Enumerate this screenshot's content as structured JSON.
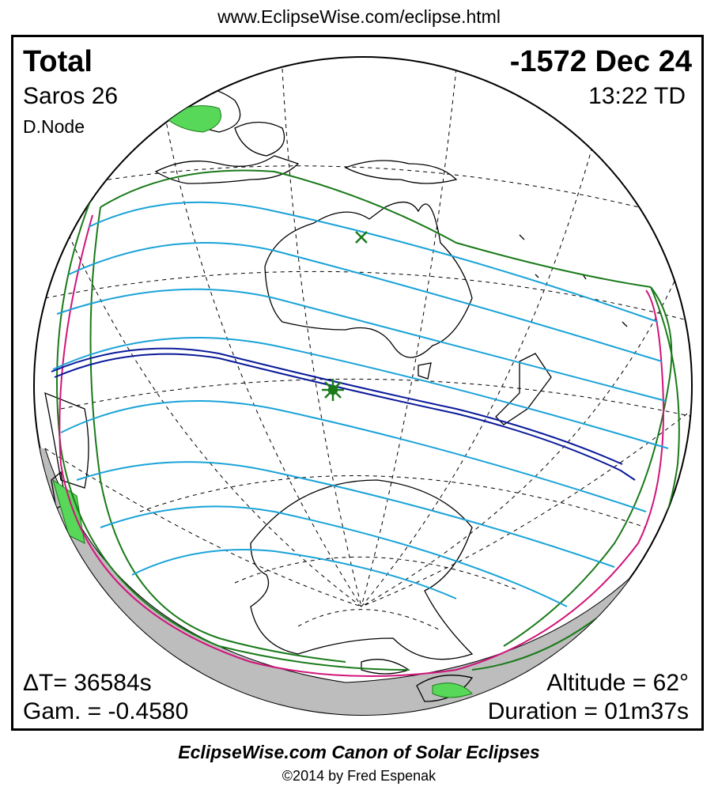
{
  "header": {
    "url": "www.EclipseWise.com/eclipse.html"
  },
  "eclipse": {
    "type": "Total",
    "date": "-1572 Dec 24",
    "saros": "Saros  26",
    "time": "13:22 TD",
    "node": "D.Node",
    "delta_t": "ΔT=  36584s",
    "gamma": "Gam. = -0.4580",
    "altitude": "Altitude = 62°",
    "duration": "Duration = 01m37s"
  },
  "footer": {
    "title": "EclipseWise.com Canon of Solar Eclipses",
    "copyright": "©2014 by Fred Espenak"
  },
  "colors": {
    "penumbra_limit": "#1a7a1a",
    "rise_set_curve": "#d0147a",
    "hourly_curves": "#1aa3d8",
    "central_path": "#0a1a9a",
    "night_side": "#bdbdbd",
    "greatest_eclipse_marker": "#1a7a1a"
  },
  "icons": {
    "greatest_eclipse": "star-burst-icon",
    "subsolar_point": "x-mark-icon"
  }
}
